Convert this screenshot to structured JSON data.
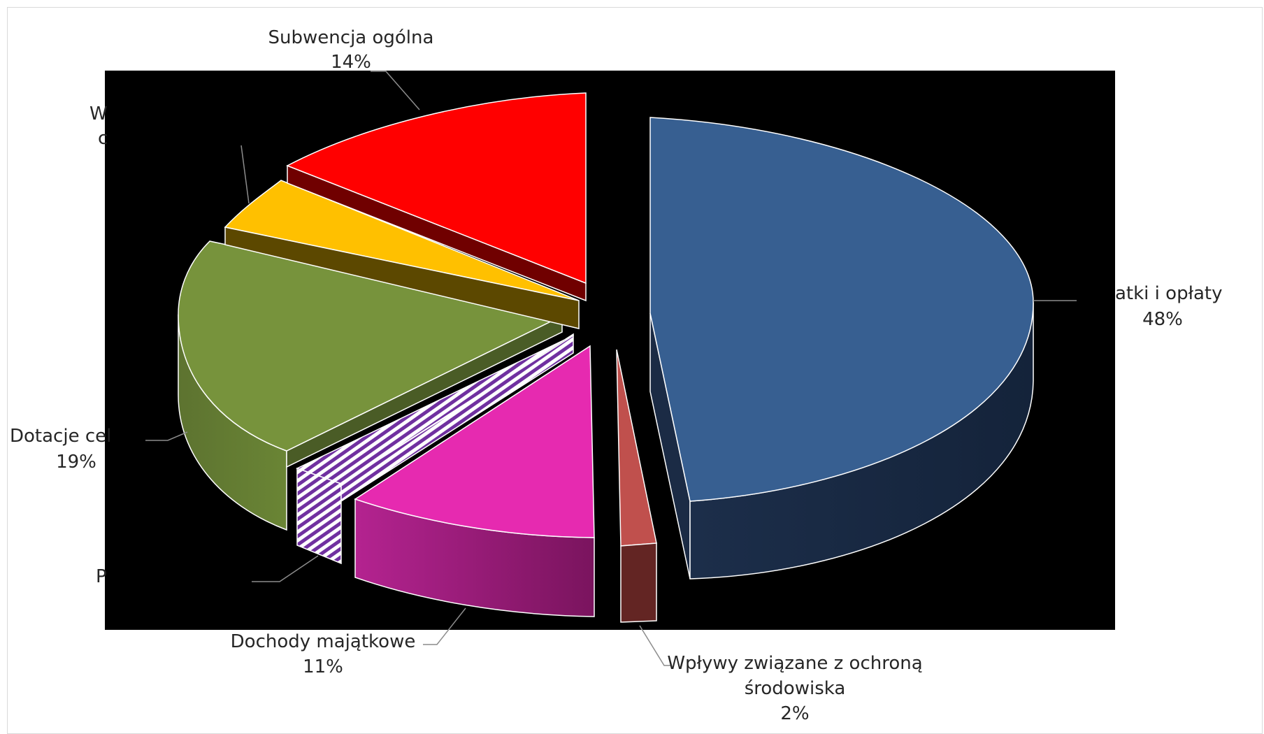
{
  "chart_data": {
    "type": "pie",
    "variant": "3d-exploded",
    "title": "",
    "legend": "none",
    "plot_background": "#000000",
    "slices": [
      {
        "name": "Podatki i opłaty",
        "percent": 48,
        "label": "48%",
        "color": "#375F91",
        "visible_name": "atki i opłaty"
      },
      {
        "name": "Wpływy związane z ochroną środowiska",
        "percent": 2,
        "label": "2%",
        "color": "#C0504D",
        "visible_name_lines": [
          "Wpływy związane z ochroną",
          "środowiska"
        ]
      },
      {
        "name": "Dochody majątkowe",
        "percent": 11,
        "label": "11%",
        "color": "#E62AB0",
        "visible_name": "Dochody majątkowe"
      },
      {
        "name": "P...",
        "percent": 1,
        "label": "",
        "color": "#7030A0",
        "pattern": "diagonal-stripes",
        "visible_name": "P"
      },
      {
        "name": "Dotacje cel...",
        "percent": 19,
        "label": "19%",
        "color": "#77933C",
        "visible_name": "Dotacje cel"
      },
      {
        "name": "W...",
        "percent": 5,
        "label": "",
        "color": "#FFC000",
        "visible_name_lines": [
          "W",
          "c"
        ]
      },
      {
        "name": "Subwencja ogólna",
        "percent": 14,
        "label": "14%",
        "color": "#FF0000",
        "visible_name": "Subwencja ogólna"
      }
    ]
  }
}
